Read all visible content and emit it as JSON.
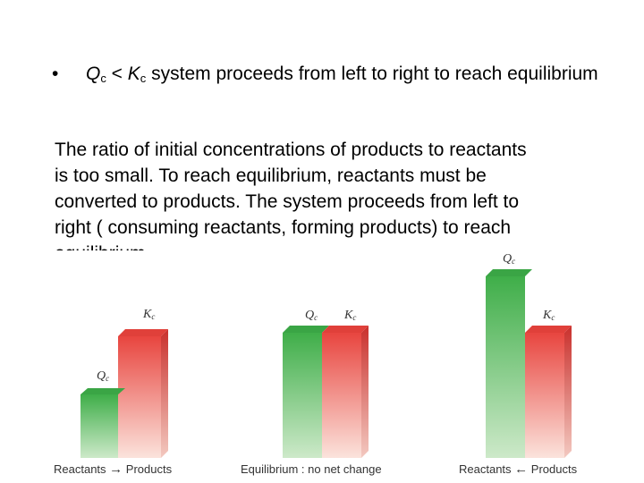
{
  "bullet": {
    "symbol": "•",
    "q": "Q",
    "q_sub": "c",
    "lt": " < ",
    "k": "K",
    "k_sub": "c",
    "rest": " system proceeds from left to right to reach equilibrium"
  },
  "paragraph": {
    "lines": [
      "The ratio of initial concentrations of products to reactants",
      "is too small. To reach equilibrium, reactants must be",
      "converted to products. The system proceeds from left to",
      "right ( consuming reactants, forming products) to reach",
      "equilibrium."
    ]
  },
  "diagram": {
    "colors": {
      "q_top": "#3fae49",
      "q_bottom": "#cde9c9",
      "k_top": "#e8453f",
      "k_bottom": "#fbe3dc",
      "label": "#333333"
    },
    "panels": [
      {
        "caption_left": "Reactants",
        "arrow": "→",
        "caption_right": "Products",
        "q_label": "Q",
        "q_sub": "c",
        "k_label": "K",
        "k_sub": "c"
      },
      {
        "caption": "Equilibrium : no net change",
        "q_label": "Q",
        "q_sub": "c",
        "k_label": "K",
        "k_sub": "c"
      },
      {
        "caption_left": "Reactants",
        "arrow": "←",
        "caption_right": "Products",
        "q_label": "Q",
        "q_sub": "c",
        "k_label": "K",
        "k_sub": "c"
      }
    ]
  }
}
